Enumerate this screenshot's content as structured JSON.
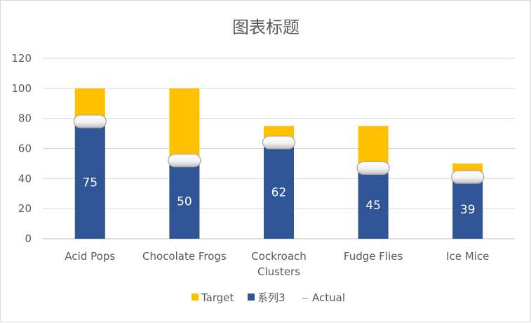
{
  "chart_data": {
    "type": "bar",
    "title": "图表标题",
    "categories": [
      "Acid Pops",
      "Chocolate Frogs",
      "Cockroach Clusters",
      "Fudge Flies",
      "Ice Mice"
    ],
    "series": [
      {
        "name": "Target",
        "values": [
          100,
          100,
          75,
          75,
          50
        ],
        "color": "#ffc000",
        "kind": "bar"
      },
      {
        "name": "系列3",
        "values": [
          75,
          50,
          62,
          45,
          39
        ],
        "color": "#2f5597",
        "kind": "bar"
      },
      {
        "name": "Actual",
        "values": [
          78,
          52,
          64,
          47,
          41
        ],
        "color": "#f2f2f2",
        "kind": "marker"
      }
    ],
    "data_labels": [
      "75",
      "50",
      "62",
      "45",
      "39"
    ],
    "yticks": [
      "0",
      "20",
      "40",
      "60",
      "80",
      "100",
      "120"
    ],
    "ylim": [
      0,
      120
    ],
    "grid": true,
    "legend_position": "bottom"
  }
}
